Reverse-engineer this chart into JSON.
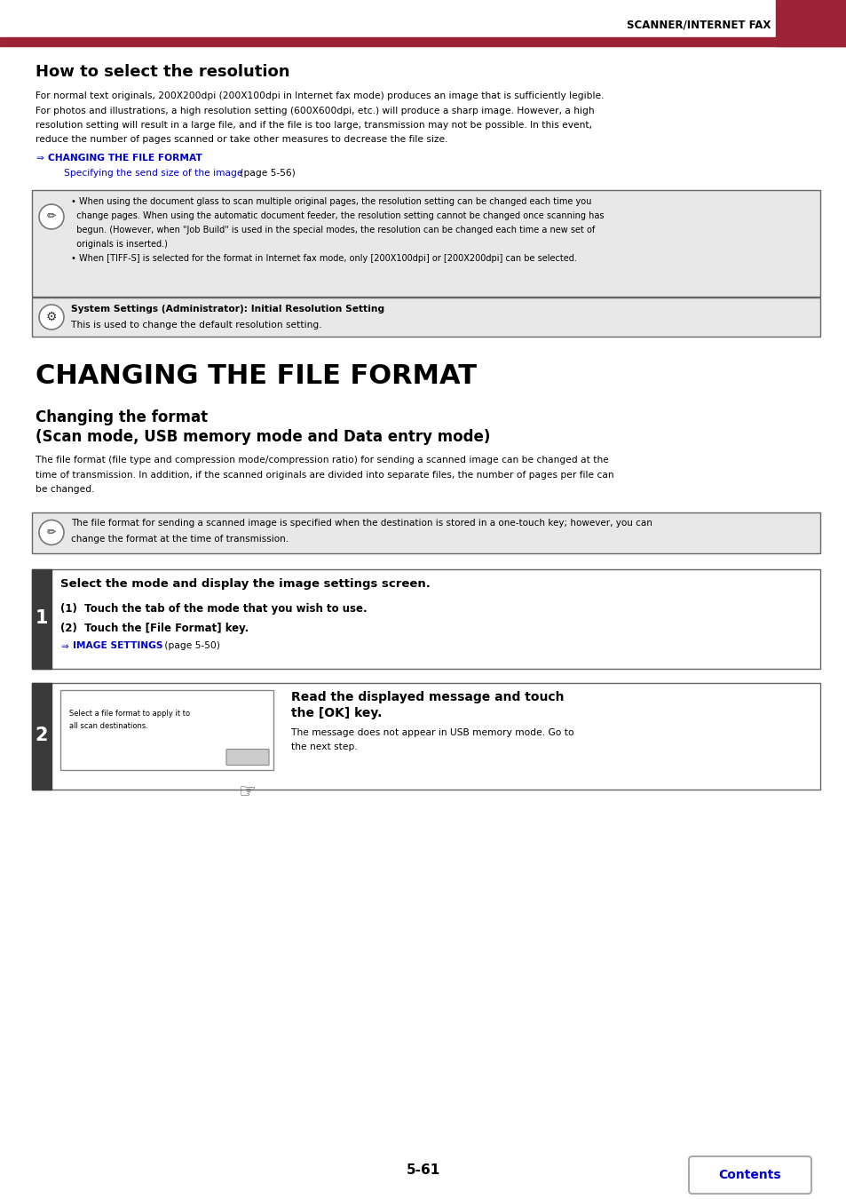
{
  "page_width": 9.54,
  "page_height": 13.5,
  "bg_color": "#ffffff",
  "header_bar_color": "#9B2335",
  "header_text": "SCANNER/INTERNET FAX",
  "link_color": "#0000CC",
  "note_box_bg": "#E8E8E8",
  "note_box_border": "#666666",
  "section1_title": "How to select the resolution",
  "section1_body_lines": [
    "For normal text originals, 200X200dpi (200X100dpi in Internet fax mode) produces an image that is sufficiently legible.",
    "For photos and illustrations, a high resolution setting (600X600dpi, etc.) will produce a sharp image. However, a high",
    "resolution setting will result in a large file, and if the file is too large, transmission may not be possible. In this event,",
    "reduce the number of pages scanned or take other measures to decrease the file size."
  ],
  "link1_text": "CHANGING THE FILE FORMAT",
  "link2_text": "Specifying the send size of the image",
  "link2_suffix": " (page 5-56)",
  "note1_lines": [
    "• When using the document glass to scan multiple original pages, the resolution setting can be changed each time you",
    "  change pages. When using the automatic document feeder, the resolution setting cannot be changed once scanning has",
    "  begun. (However, when \"Job Build\" is used in the special modes, the resolution can be changed each time a new set of",
    "  originals is inserted.)",
    "• When [TIFF-S] is selected for the format in Internet fax mode, only [200X100dpi] or [200X200dpi] can be selected."
  ],
  "note2_bold": "System Settings (Administrator): Initial Resolution Setting",
  "note2_normal": "This is used to change the default resolution setting.",
  "section2_title": "CHANGING THE FILE FORMAT",
  "section2_sub1": "Changing the format",
  "section2_sub2": "(Scan mode, USB memory mode and Data entry mode)",
  "section2_body_lines": [
    "The file format (file type and compression mode/compression ratio) for sending a scanned image can be changed at the",
    "time of transmission. In addition, if the scanned originals are divided into separate files, the number of pages per file can",
    "be changed."
  ],
  "note3_lines": [
    "The file format for sending a scanned image is specified when the destination is stored in a one-touch key; however, you can",
    "change the format at the time of transmission."
  ],
  "step1_header": "Select the mode and display the image settings screen.",
  "step1_sub1": "(1)  Touch the tab of the mode that you wish to use.",
  "step1_sub2": "(2)  Touch the [File Format] key.",
  "step1_link": "IMAGE SETTINGS",
  "step1_link_suffix": " (page 5-50)",
  "step2_img_line1": "Select a file format to apply it to",
  "step2_img_line2": "all scan destinations.",
  "step2_header_line1": "Read the displayed message and touch",
  "step2_header_line2": "the [OK] key.",
  "step2_body_lines": [
    "The message does not appear in USB memory mode. Go to",
    "the next step."
  ],
  "footer_page": "5-61",
  "footer_btn_text": "Contents",
  "step_num_bg": "#3A3A3A"
}
